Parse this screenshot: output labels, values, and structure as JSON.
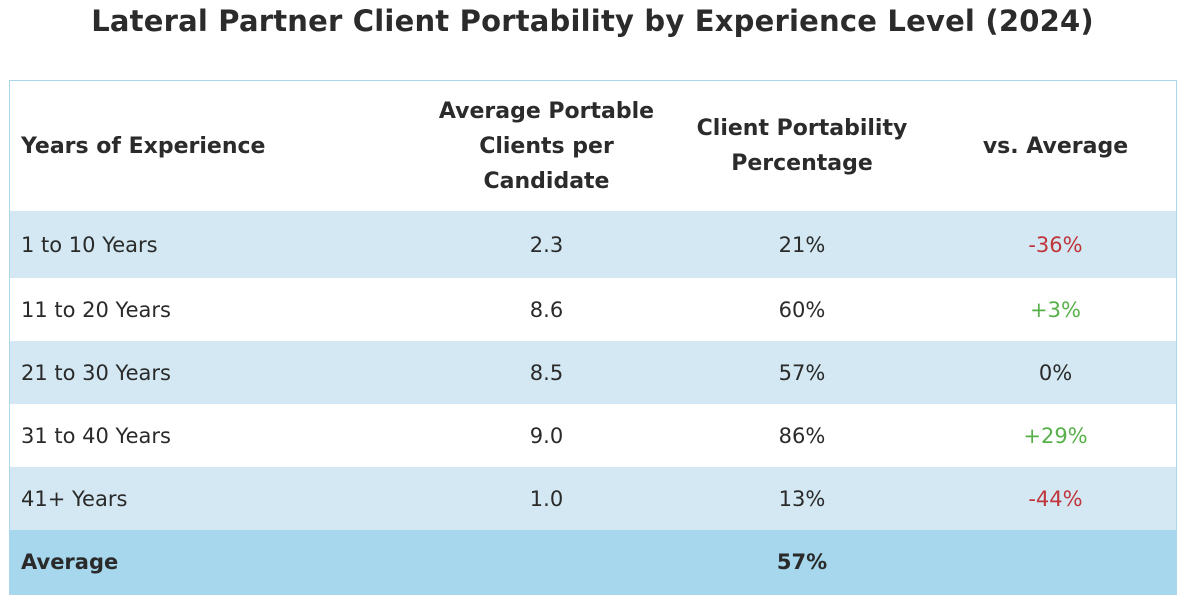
{
  "chart_data": {
    "type": "table",
    "title": "Lateral Partner Client Portability by Experience Level (2024)",
    "columns": [
      "Years of Experience",
      "Average Portable Clients per Candidate",
      "Client Portability Percentage",
      "vs. Average"
    ],
    "header_lines": {
      "col0": [
        "Years of Experience"
      ],
      "col1": [
        "Average Portable",
        "Clients per",
        "Candidate"
      ],
      "col2": [
        "Client Portability",
        "Percentage"
      ],
      "col3": [
        "vs. Average"
      ]
    },
    "rows": [
      {
        "experience": "1 to 10 Years",
        "avg_clients": "2.3",
        "portability": "21%",
        "vs_average": "-36%",
        "trend": "neg"
      },
      {
        "experience": "11 to 20 Years",
        "avg_clients": "8.6",
        "portability": "60%",
        "vs_average": "+3%",
        "trend": "pos"
      },
      {
        "experience": "21 to 30 Years",
        "avg_clients": "8.5",
        "portability": "57%",
        "vs_average": "0%",
        "trend": "zero"
      },
      {
        "experience": "31 to 40 Years",
        "avg_clients": "9.0",
        "portability": "86%",
        "vs_average": "+29%",
        "trend": "pos"
      },
      {
        "experience": "41+ Years",
        "avg_clients": "1.0",
        "portability": "13%",
        "vs_average": "-44%",
        "trend": "neg"
      }
    ],
    "footer": {
      "label": "Average",
      "avg_clients": "",
      "portability": "57%",
      "vs_average": ""
    }
  },
  "colors": {
    "positive": "#58b04a",
    "negative": "#c0343b",
    "band": "#d3e8f2",
    "footer_bg": "#a6d7ec"
  }
}
